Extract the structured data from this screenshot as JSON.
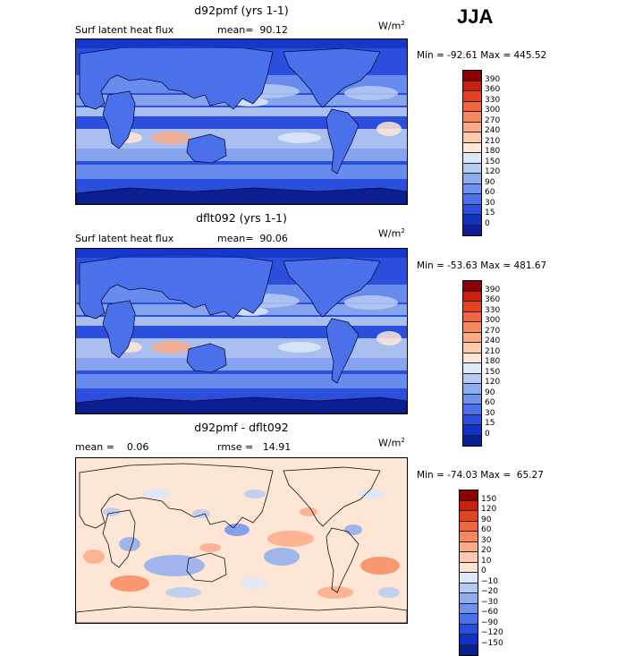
{
  "season": "JJA",
  "panels": [
    {
      "id": "d92pmf",
      "title": "d92pmf (yrs 1-1)",
      "left_label": "Surf latent heat flux",
      "mean_label": "mean=  90.12",
      "unit": "W/m",
      "unit_exp": "2",
      "minmax": "Min = -92.61 Max = 445.52",
      "kind": "flux",
      "colorbar": {
        "labels": [
          "390",
          "360",
          "330",
          "300",
          "270",
          "240",
          "210",
          "180",
          "150",
          "120",
          "90",
          "60",
          "30",
          "15",
          "0"
        ],
        "colors": [
          "#8b0000",
          "#c8200e",
          "#e4431f",
          "#f2663c",
          "#f7885e",
          "#fbaa86",
          "#fdc9ae",
          "#fee6d6",
          "#dde8f8",
          "#b7cbf2",
          "#8fadee",
          "#6e92ee",
          "#4a71ea",
          "#2b4fdc",
          "#1232c5",
          "#0b1f90"
        ]
      }
    },
    {
      "id": "dflt092",
      "title": "dflt092 (yrs 1-1)",
      "left_label": "Surf latent heat flux",
      "mean_label": "mean=  90.06",
      "unit": "W/m",
      "unit_exp": "2",
      "minmax": "Min = -53.63 Max = 481.67",
      "kind": "flux",
      "colorbar": {
        "labels": [
          "390",
          "360",
          "330",
          "300",
          "270",
          "240",
          "210",
          "180",
          "150",
          "120",
          "90",
          "60",
          "30",
          "15",
          "0"
        ],
        "colors": [
          "#8b0000",
          "#c8200e",
          "#e4431f",
          "#f2663c",
          "#f7885e",
          "#fbaa86",
          "#fdc9ae",
          "#fee6d6",
          "#dde8f8",
          "#b7cbf2",
          "#8fadee",
          "#6e92ee",
          "#4a71ea",
          "#2b4fdc",
          "#1232c5",
          "#0b1f90"
        ]
      }
    },
    {
      "id": "diff",
      "title": "d92pmf - dflt092",
      "left_label": "mean =    0.06",
      "mean_label": "rmse =   14.91",
      "unit": "W/m",
      "unit_exp": "2",
      "minmax": "Min = -74.03 Max =  65.27",
      "kind": "diff",
      "colorbar": {
        "labels": [
          "150",
          "120",
          "90",
          "60",
          "30",
          "20",
          "10",
          "0",
          "−10",
          "−20",
          "−30",
          "−60",
          "−90",
          "−120",
          "−150"
        ],
        "colors": [
          "#8b0000",
          "#c8200e",
          "#e4431f",
          "#f2663c",
          "#f7885e",
          "#fbaa86",
          "#fdc9ae",
          "#fee6d6",
          "#dde8f8",
          "#b7cbf2",
          "#8fadee",
          "#6e92ee",
          "#4a71ea",
          "#2b4fdc",
          "#1232c5",
          "#0b1f90"
        ]
      }
    }
  ]
}
